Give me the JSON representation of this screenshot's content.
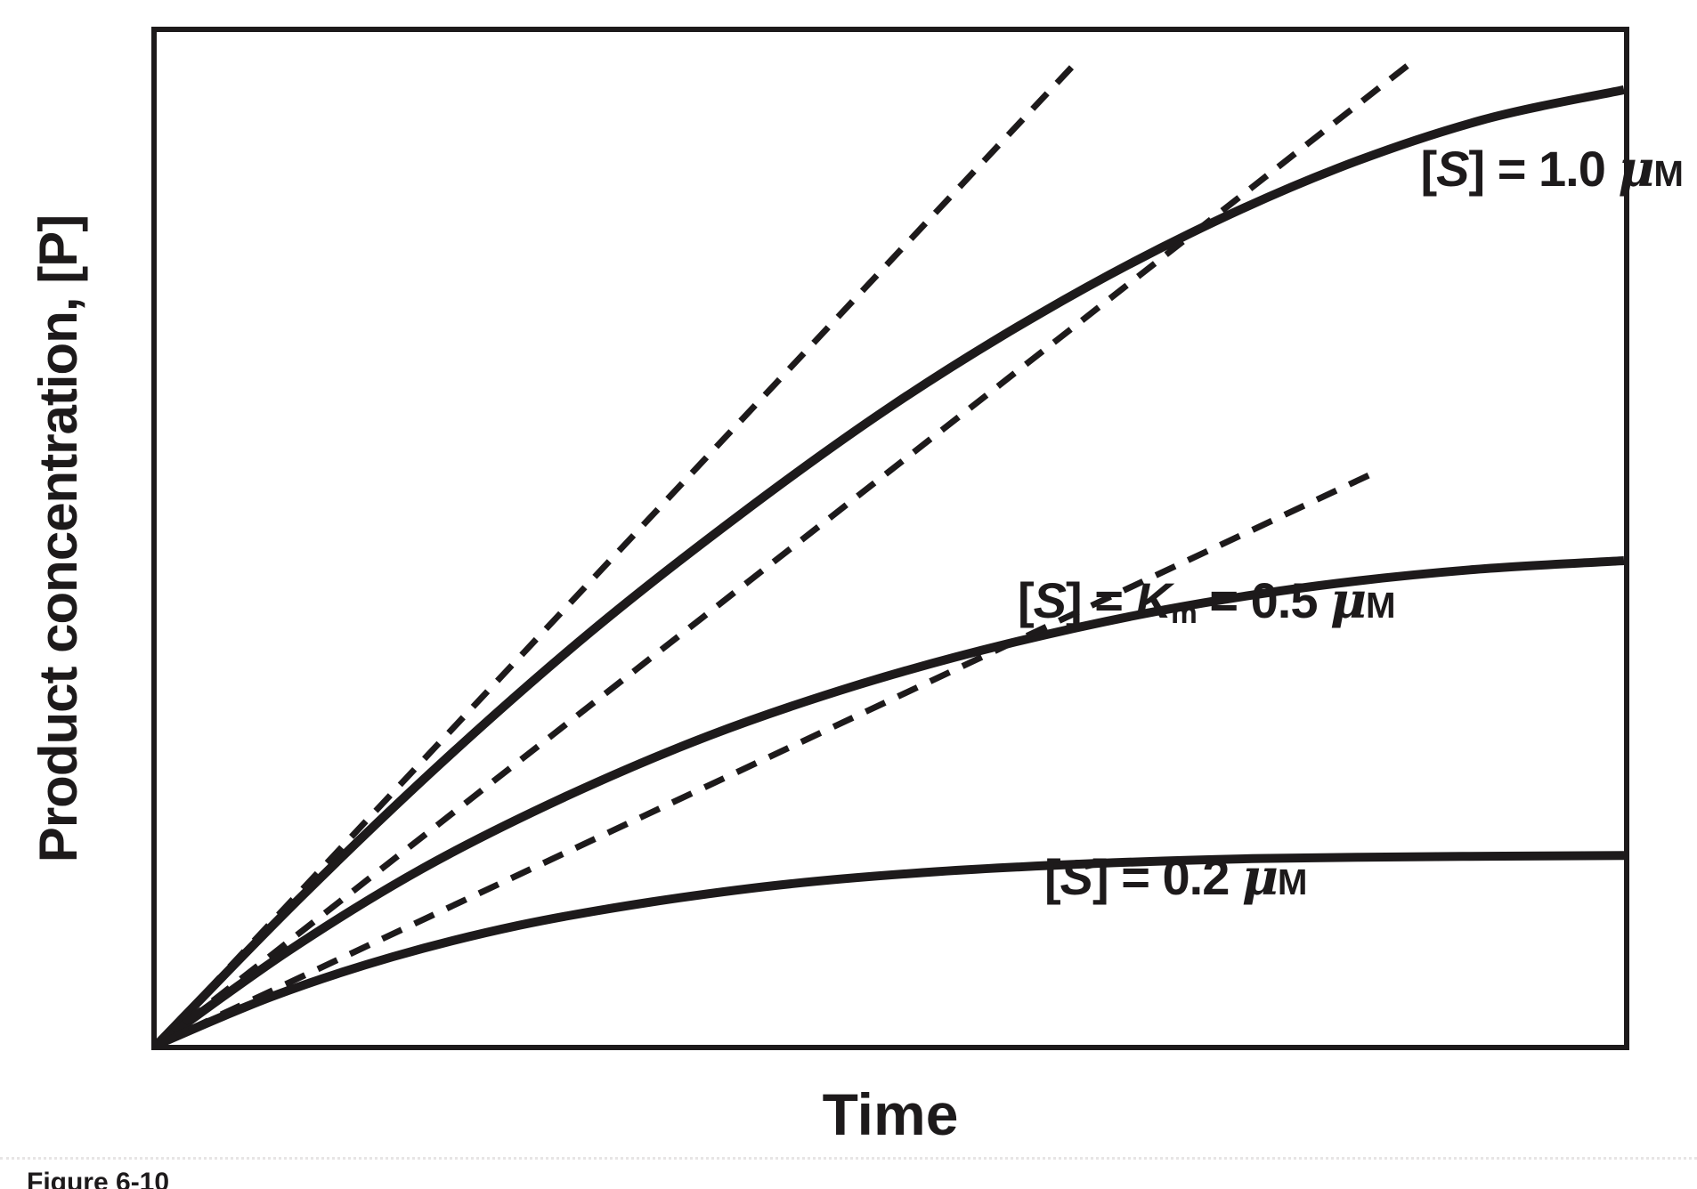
{
  "figure": {
    "caption": "Figure 6-10",
    "x_axis_label": "Time",
    "y_axis_label": "Product concentration, [P]"
  },
  "curve_labels": {
    "s10": {
      "lb": "[",
      "s": "S",
      "rb_eq": "] = ",
      "val": "1.0 ",
      "mu": "μ",
      "m": "M"
    },
    "km": {
      "lb": "[",
      "s": "S",
      "rb_eq": "] = ",
      "k": "K",
      "k_sub": "m",
      "eq2": " = ",
      "val": "0.5 ",
      "mu": "μ",
      "m": "M"
    },
    "s02": {
      "lb": "[",
      "s": "S",
      "rb_eq": "] = ",
      "val": "0.2 ",
      "mu": "μ",
      "m": "M"
    }
  },
  "chart_data": {
    "type": "line",
    "title": "",
    "xlabel": "Time",
    "ylabel": "Product concentration, [P]",
    "x_ticks": [],
    "y_ticks": [],
    "grid": false,
    "legend_position": "labels next to curves",
    "axis_note": "axes carry no numeric scale; point coordinates are normalized 0-100 of plot width/height",
    "ink_color": "#1d1a1b",
    "background": "#ffffff",
    "series": [
      {
        "name": "[S] = 1.0 μM",
        "key": "s-1.0-um",
        "style": "solid",
        "points": [
          [
            0,
            0
          ],
          [
            9.7,
            14.4
          ],
          [
            19.6,
            28.1
          ],
          [
            29.6,
            40.8
          ],
          [
            39.8,
            52.4
          ],
          [
            50,
            63
          ],
          [
            60.2,
            72.2
          ],
          [
            70.4,
            80.1
          ],
          [
            80.4,
            86.5
          ],
          [
            90.3,
            91.3
          ],
          [
            100,
            94.3
          ]
        ]
      },
      {
        "name": "[S] = Km = 0.5 μM",
        "key": "s-0.5-um",
        "style": "solid",
        "points": [
          [
            0,
            0
          ],
          [
            8.9,
            9.2
          ],
          [
            18.1,
            17.4
          ],
          [
            27.7,
            24.4
          ],
          [
            37.6,
            30.5
          ],
          [
            47.7,
            35.5
          ],
          [
            58,
            39.6
          ],
          [
            68.5,
            42.9
          ],
          [
            79,
            45.3
          ],
          [
            89.5,
            46.9
          ],
          [
            100,
            47.8
          ]
        ]
      },
      {
        "name": "[S] = 0.2 μM",
        "key": "s-0.2-um",
        "style": "solid",
        "points": [
          [
            0,
            0
          ],
          [
            7.9,
            4.8
          ],
          [
            16.1,
            8.7
          ],
          [
            24.7,
            11.8
          ],
          [
            33.7,
            14.1
          ],
          [
            43.2,
            15.9
          ],
          [
            53.2,
            17.1
          ],
          [
            63.9,
            17.9
          ],
          [
            75.2,
            18.4
          ],
          [
            89,
            18.6
          ],
          [
            100,
            18.7
          ]
        ]
      },
      {
        "name": "initial-rate tangent for [S] = 1.0 μM",
        "key": "s-1.0-um",
        "style": "dashed",
        "points": [
          [
            0,
            0
          ],
          [
            62.4,
            96.6
          ]
        ]
      },
      {
        "name": "initial-rate tangent for [S] = 0.5 μM",
        "key": "s-0.5-um",
        "style": "dashed",
        "points": [
          [
            0,
            0
          ],
          [
            85.7,
            97.2
          ]
        ]
      },
      {
        "name": "initial-rate tangent for [S] = 0.2 μM",
        "key": "s-0.2-um",
        "style": "dashed",
        "points": [
          [
            0,
            0
          ],
          [
            83,
            56.5
          ]
        ]
      }
    ]
  }
}
